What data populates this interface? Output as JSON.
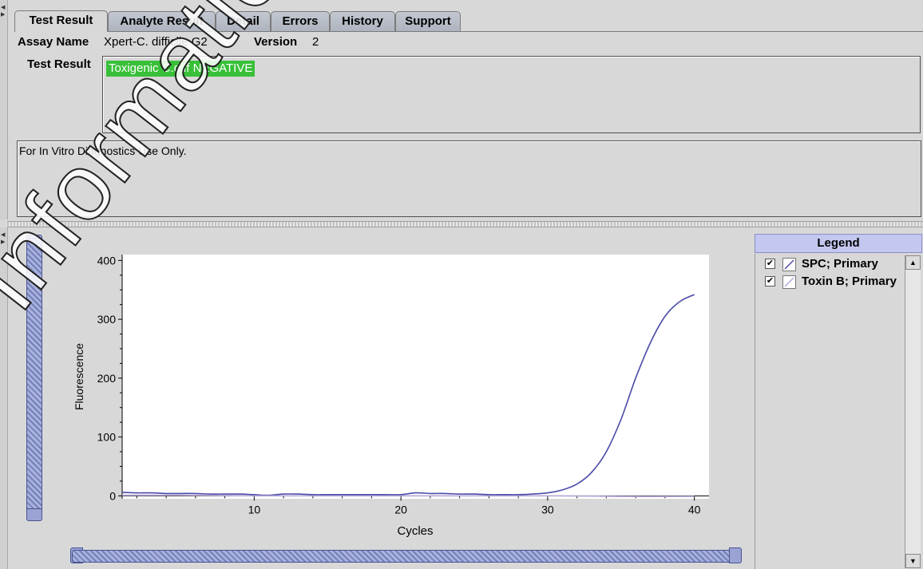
{
  "tabs": [
    {
      "label": "Test Result",
      "active": true
    },
    {
      "label": "Analyte Result",
      "active": false
    },
    {
      "label": "Detail",
      "active": false
    },
    {
      "label": "Errors",
      "active": false
    },
    {
      "label": "History",
      "active": false
    },
    {
      "label": "Support",
      "active": false
    }
  ],
  "assay": {
    "name_label": "Assay Name",
    "name_value": "Xpert-C. difficile G2",
    "version_label": "Version",
    "version_value": "2"
  },
  "test_result": {
    "label": "Test Result",
    "value": "Toxigenic C.diff NEGATIVE",
    "value_color": "#38c038"
  },
  "notice": "For In Vitro Diagnostics Use Only.",
  "legend": {
    "title": "Legend",
    "items": [
      {
        "label": "SPC; Primary",
        "checked": true,
        "color": "#4a4aa8"
      },
      {
        "label": "Toxin B; Primary",
        "checked": true,
        "color": "#b8a8d8"
      }
    ]
  },
  "watermark": "Information Only - Not",
  "chart_data": {
    "type": "line",
    "xlabel": "Cycles",
    "ylabel": "Fluorescence",
    "xlim": [
      1,
      41
    ],
    "ylim": [
      -5,
      410
    ],
    "xticks": [
      10,
      20,
      30,
      40
    ],
    "yticks": [
      0,
      100,
      200,
      300,
      400
    ],
    "grid": false,
    "series": [
      {
        "name": "SPC; Primary",
        "color": "#4a4aa8",
        "x": [
          1,
          2,
          3,
          4,
          5,
          6,
          7,
          8,
          9,
          10,
          11,
          12,
          13,
          14,
          15,
          16,
          17,
          18,
          19,
          20,
          21,
          22,
          23,
          24,
          25,
          26,
          27,
          28,
          29,
          30,
          31,
          32,
          33,
          34,
          35,
          36,
          37,
          38,
          39,
          40
        ],
        "y": [
          6,
          5,
          5,
          4,
          4,
          4,
          3,
          3,
          3,
          2,
          1,
          3,
          3,
          2,
          2,
          2,
          2,
          2,
          2,
          2,
          5,
          4,
          4,
          3,
          3,
          2,
          2,
          2,
          3,
          5,
          10,
          20,
          40,
          75,
          130,
          200,
          260,
          305,
          330,
          342
        ]
      },
      {
        "name": "Toxin B; Primary",
        "color": "#b8a8d8",
        "x": [
          1,
          5,
          10,
          15,
          20,
          25,
          30,
          35,
          40
        ],
        "y": [
          1,
          1,
          0,
          0,
          0,
          0,
          0,
          -1,
          -1
        ]
      }
    ]
  }
}
